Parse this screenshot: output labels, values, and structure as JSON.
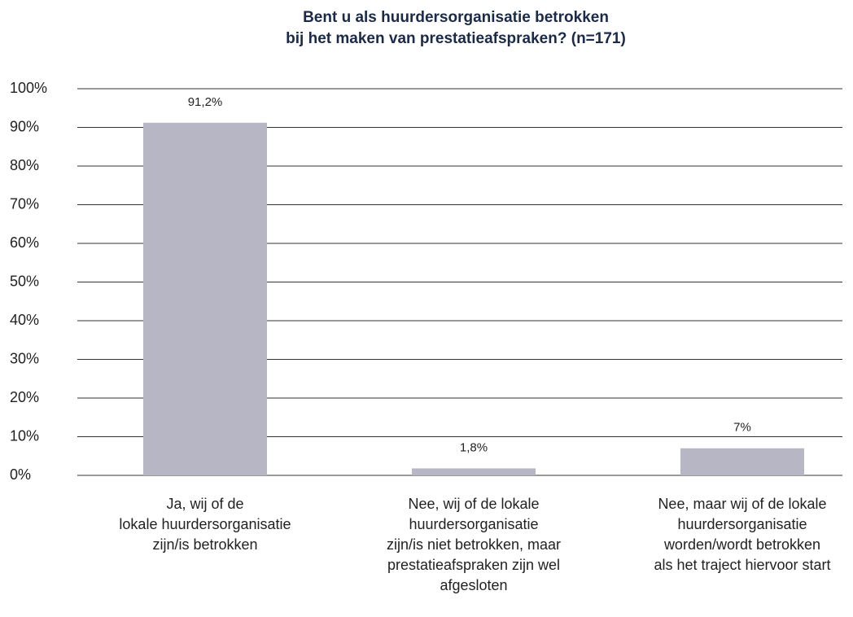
{
  "chart_data": {
    "type": "bar",
    "title": [
      "Bent u als huurdersorganisatie betrokken",
      "bij het maken van prestatieafspraken? (n=171)"
    ],
    "categories": [
      [
        "Ja, wij of de",
        "lokale huurdersorganisatie",
        "zijn/is betrokken"
      ],
      [
        "Nee, wij of de lokale",
        "huurdersorganisatie",
        "zijn/is niet betrokken, maar",
        "prestatieafspraken zijn wel",
        "afgesloten"
      ],
      [
        "Nee, maar wij of de lokale",
        "huurdersorganisatie",
        "worden/wordt betrokken",
        "als het traject hiervoor start"
      ]
    ],
    "values": [
      91.2,
      1.8,
      7
    ],
    "value_labels": [
      "91,2%",
      "1,8%",
      "7%"
    ],
    "color": "#b7b6c4",
    "ylim": [
      0,
      100
    ],
    "yticks": [
      {
        "value": 0,
        "label": "0%"
      },
      {
        "value": 10,
        "label": "10%"
      },
      {
        "value": 20,
        "label": "20%"
      },
      {
        "value": 30,
        "label": "30%"
      },
      {
        "value": 40,
        "label": "40%"
      },
      {
        "value": 50,
        "label": "50%"
      },
      {
        "value": 60,
        "label": "60%"
      },
      {
        "value": 70,
        "label": "70%"
      },
      {
        "value": 80,
        "label": "80%"
      },
      {
        "value": 90,
        "label": "90%"
      },
      {
        "value": 100,
        "label": "100%"
      }
    ],
    "grid": true
  }
}
